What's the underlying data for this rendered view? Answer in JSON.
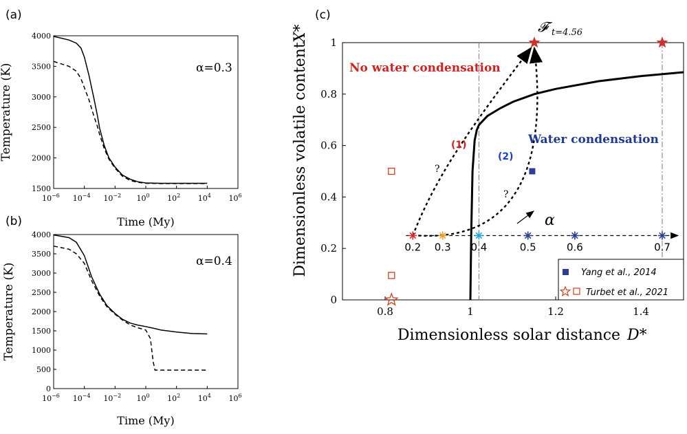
{
  "chart_data": [
    {
      "panel": "(a)",
      "type": "line",
      "annotation": "α=0.3",
      "xlabel": "Time (My)",
      "ylabel": "Temperature (K)",
      "xscale": "log",
      "xticks": [
        "10^-6",
        "10^-4",
        "10^-2",
        "10^0",
        "10^2",
        "10^4",
        "10^6"
      ],
      "yticks": [
        "1500",
        "2000",
        "2500",
        "3000",
        "3500",
        "4000"
      ],
      "ylim": [
        1500,
        4000
      ],
      "series": [
        {
          "style": "solid",
          "x": [
            1e-06,
            1e-05,
            3e-05,
            6e-05,
            0.0001,
            0.0002,
            0.0004,
            0.0007,
            0.001,
            0.002,
            0.004,
            0.01,
            0.03,
            0.1,
            0.3,
            1,
            10,
            100,
            1000,
            10000
          ],
          "y": [
            3990,
            3930,
            3880,
            3800,
            3650,
            3350,
            3000,
            2700,
            2480,
            2200,
            2000,
            1850,
            1720,
            1650,
            1610,
            1590,
            1585,
            1585,
            1585,
            1585
          ]
        },
        {
          "style": "dashed",
          "x": [
            1e-06,
            1e-05,
            3e-05,
            6e-05,
            0.0001,
            0.0002,
            0.0004,
            0.0007,
            0.001,
            0.002,
            0.004,
            0.01,
            0.03,
            0.1,
            0.3,
            1,
            10,
            100,
            1000,
            10000
          ],
          "y": [
            3580,
            3500,
            3420,
            3300,
            3150,
            2950,
            2700,
            2520,
            2380,
            2150,
            1980,
            1830,
            1700,
            1630,
            1600,
            1585,
            1580,
            1580,
            1580,
            1580
          ]
        }
      ]
    },
    {
      "panel": "(b)",
      "type": "line",
      "annotation": "α=0.4",
      "xlabel": "Time (My)",
      "ylabel": "Temperature (K)",
      "xscale": "log",
      "xticks": [
        "10^-6",
        "10^-4",
        "10^-2",
        "10^0",
        "10^2",
        "10^4",
        "10^6"
      ],
      "yticks": [
        "0",
        "500",
        "1000",
        "1500",
        "2000",
        "2500",
        "3000",
        "3500",
        "4000"
      ],
      "ylim": [
        0,
        4000
      ],
      "series": [
        {
          "style": "solid",
          "x": [
            1e-06,
            1e-05,
            3e-05,
            0.0001,
            0.0003,
            0.001,
            0.003,
            0.01,
            0.03,
            0.1,
            0.3,
            1,
            3,
            10,
            100,
            1000,
            10000
          ],
          "y": [
            3990,
            3920,
            3800,
            3450,
            2900,
            2450,
            2150,
            1950,
            1800,
            1700,
            1650,
            1610,
            1570,
            1520,
            1470,
            1430,
            1420
          ]
        },
        {
          "style": "dashed",
          "x": [
            1e-06,
            1e-05,
            3e-05,
            0.0001,
            0.0003,
            0.001,
            0.003,
            0.01,
            0.03,
            0.1,
            0.3,
            1,
            2,
            3,
            4,
            10,
            100,
            1000,
            10000
          ],
          "y": [
            3700,
            3620,
            3500,
            3250,
            2800,
            2400,
            2120,
            1930,
            1780,
            1650,
            1580,
            1520,
            1300,
            700,
            480,
            480,
            480,
            480,
            480
          ]
        }
      ]
    },
    {
      "panel": "(c)",
      "type": "line",
      "xlabel": "Dimensionless solar distance",
      "xlabel_symbol": "D*",
      "ylabel": "Dimensionless volatile content",
      "ylabel_symbol": "X*",
      "xlim": [
        0.7,
        1.5
      ],
      "ylim": [
        0,
        1
      ],
      "xticks": [
        "0.8",
        "1",
        "1.2",
        "1.4"
      ],
      "yticks": [
        "0",
        "0.2",
        "0.4",
        "0.6",
        "0.8",
        "1"
      ],
      "threshold_curve": {
        "x": [
          1.0,
          1.002,
          1.005,
          1.01,
          1.015,
          1.02,
          1.04,
          1.07,
          1.1,
          1.15,
          1.2,
          1.3,
          1.4,
          1.5
        ],
        "y": [
          0.0,
          0.25,
          0.5,
          0.62,
          0.66,
          0.68,
          0.715,
          0.745,
          0.77,
          0.8,
          0.82,
          0.85,
          0.87,
          0.885
        ]
      },
      "region_labels": [
        "No water condensation",
        "Water condensation"
      ],
      "top_label": "𝓕",
      "top_label_sub": "t=4.56",
      "alpha_label": "α",
      "alpha_points": {
        "labels": [
          "0.2",
          "0.3",
          "0.4",
          "0.5",
          "0.6",
          "0.7"
        ],
        "x": [
          0.865,
          0.935,
          1.02,
          1.135,
          1.245,
          1.45
        ],
        "y": 0.25,
        "colors": [
          "#d32f2f",
          "#f0a030",
          "#29a8d8",
          "#2e3f8f",
          "#2e3f8f",
          "#2e3f8f"
        ]
      },
      "vertical_lines_x": [
        1.02,
        1.45
      ],
      "paths": [
        {
          "label": "(1)",
          "label_color": "#d32020",
          "mark": "?"
        },
        {
          "label": "(2)",
          "label_color": "#1a3fd0",
          "mark": "?"
        }
      ],
      "stars_top": {
        "x": [
          1.15,
          1.45
        ],
        "y": 1.0,
        "color": "#d32f2f"
      },
      "yang_2014": {
        "x": 1.145,
        "y": 0.5,
        "color": "#2e3f8f"
      },
      "turbet_2021": {
        "star": {
          "x": 0.815,
          "y": 0.0
        },
        "squares": [
          {
            "x": 0.815,
            "y": 0.5
          },
          {
            "x": 0.815,
            "y": 0.095
          }
        ],
        "color": "#d04020"
      },
      "legend": [
        {
          "name": "Yang et al., 2014",
          "marker": "filled-square"
        },
        {
          "name": "Turbet et al., 2021",
          "marker": "hollow-star-square"
        }
      ],
      "legend_position": "bottom-right"
    }
  ]
}
